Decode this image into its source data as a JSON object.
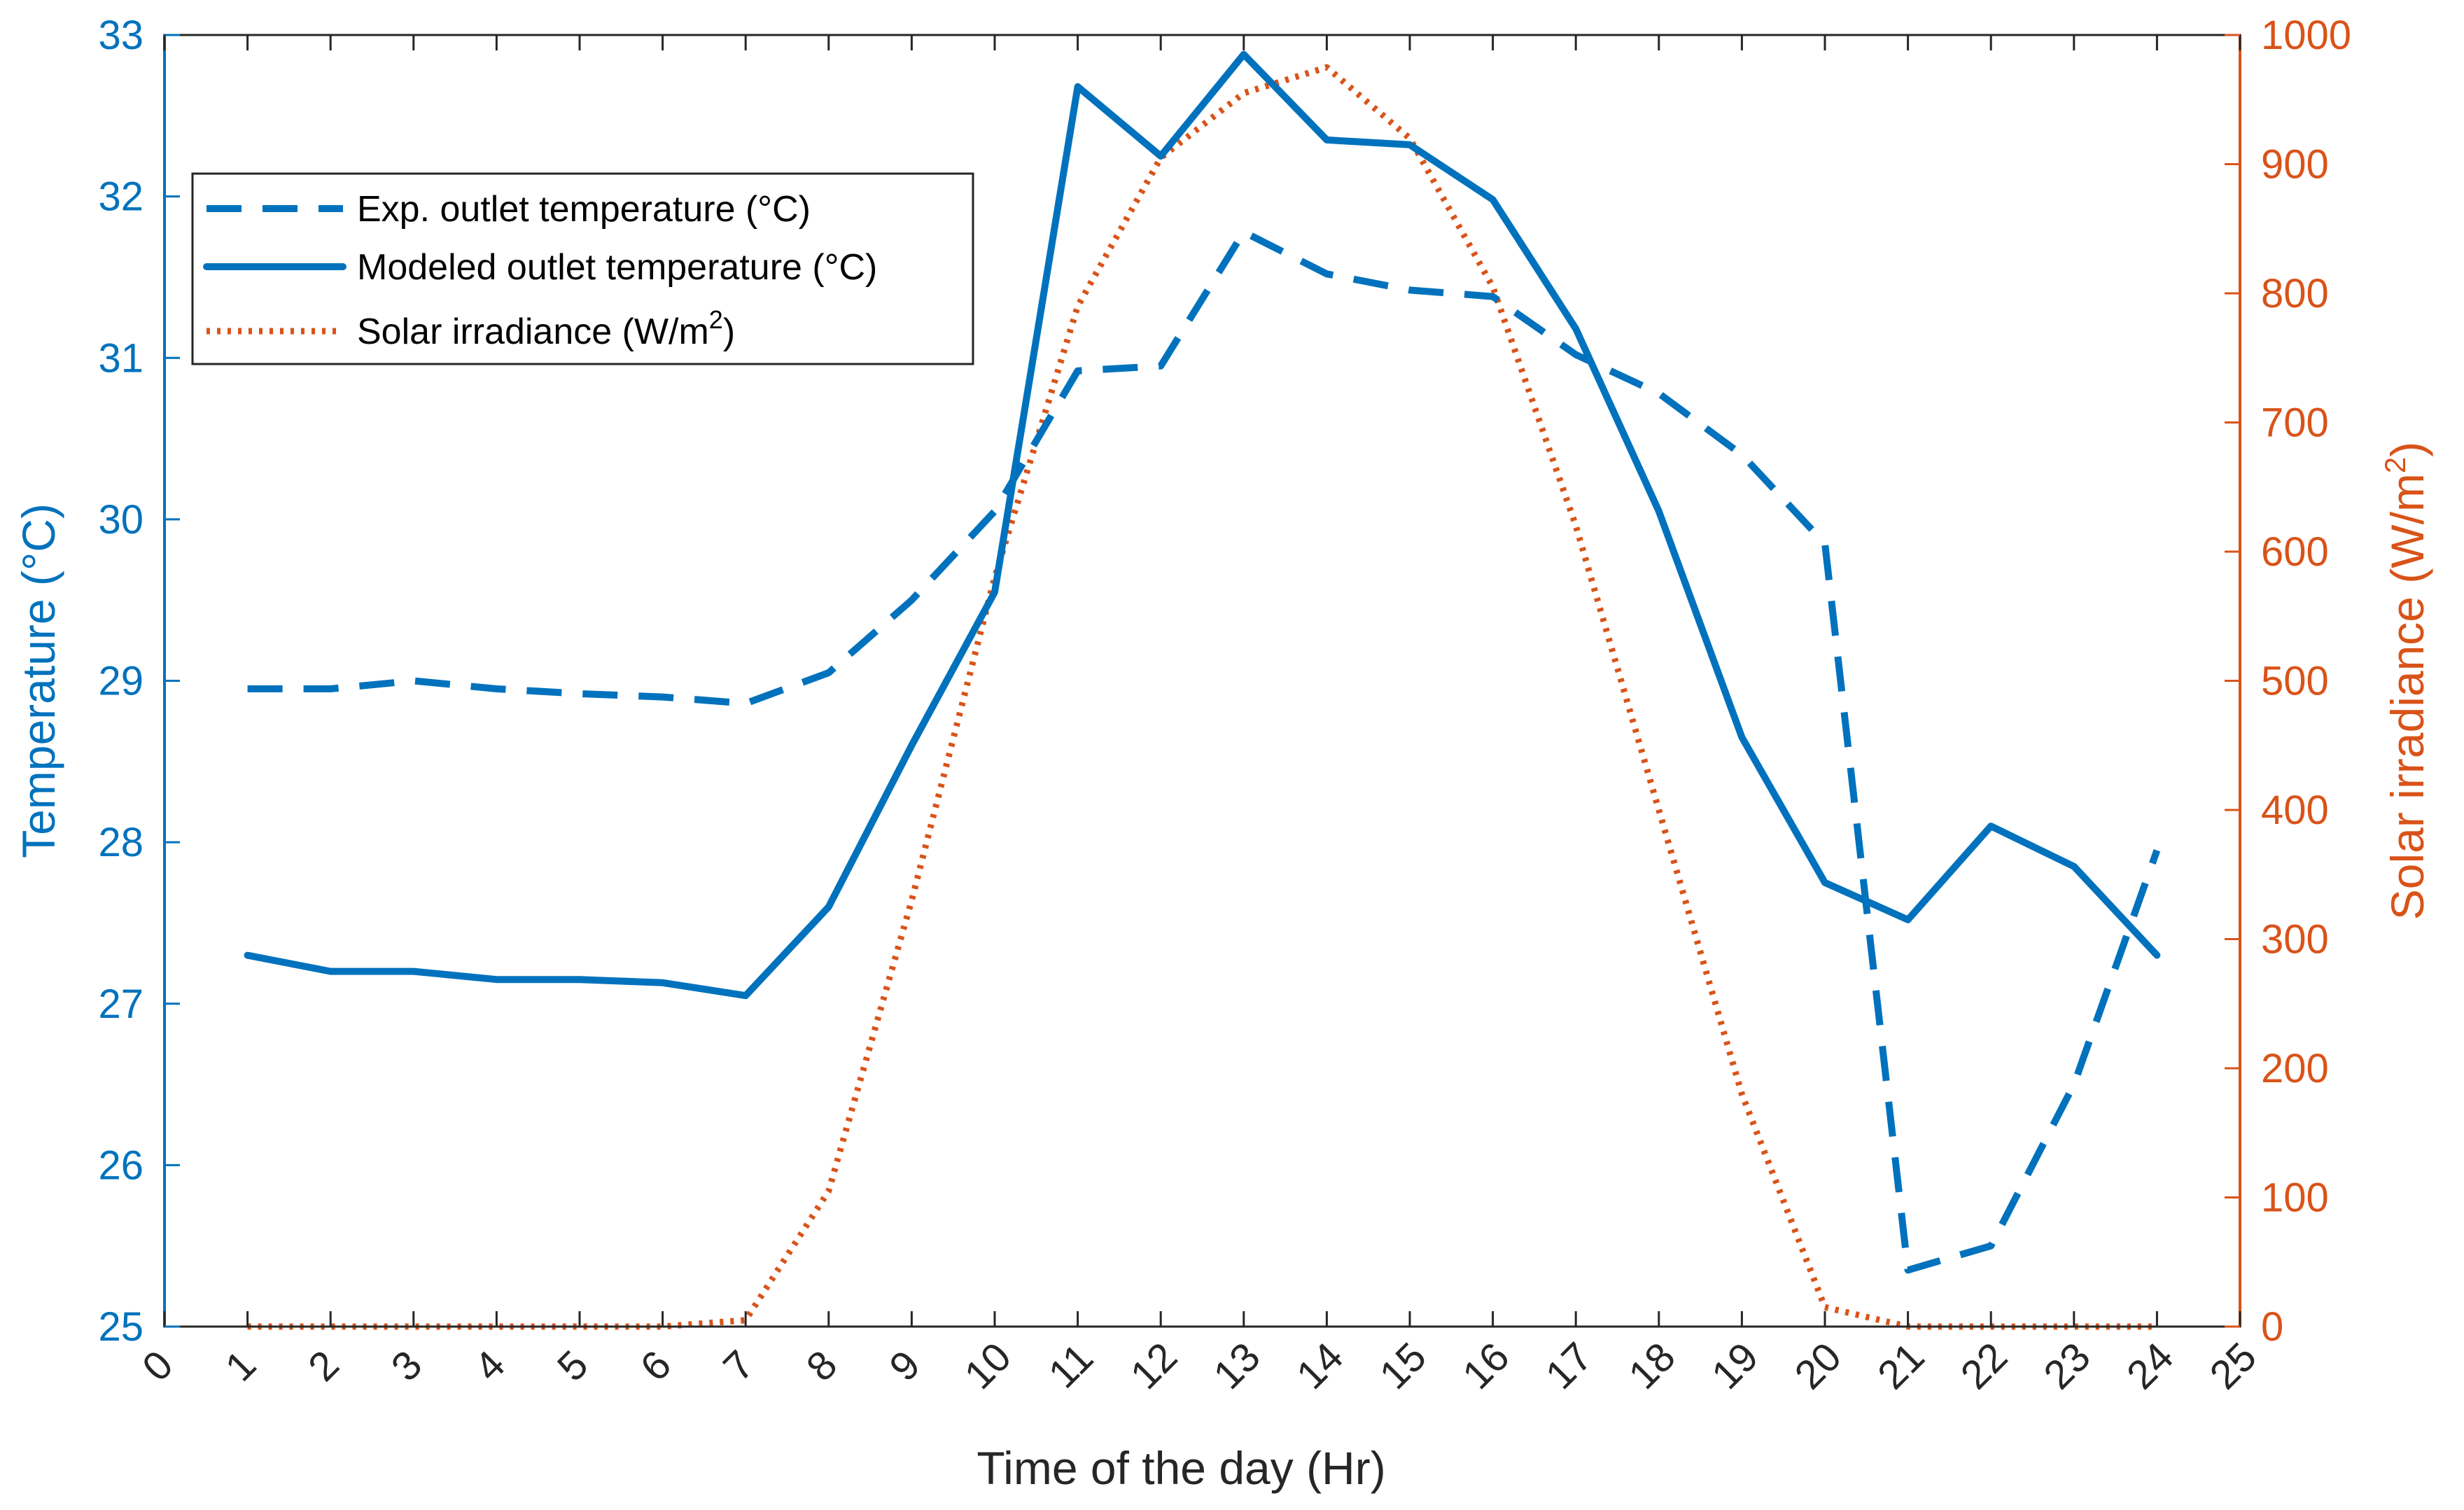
{
  "chart_data": {
    "type": "line",
    "title": "",
    "xlabel": "Time of the day (Hr)",
    "ylabel_left": "Temperature (°C)",
    "ylabel_right_base": "Solar irradiance (W/m",
    "ylabel_right_sup": "2",
    "ylabel_right_end": ")",
    "xlim": [
      0,
      25
    ],
    "ylim_left": [
      25,
      33
    ],
    "ylim_right": [
      0,
      1000
    ],
    "x_ticks": [
      0,
      1,
      2,
      3,
      4,
      5,
      6,
      7,
      8,
      9,
      10,
      11,
      12,
      13,
      14,
      15,
      16,
      17,
      18,
      19,
      20,
      21,
      22,
      23,
      24,
      25
    ],
    "y_left_ticks": [
      25,
      26,
      27,
      28,
      29,
      30,
      31,
      32,
      33
    ],
    "y_right_ticks": [
      0,
      100,
      200,
      300,
      400,
      500,
      600,
      700,
      800,
      900,
      1000
    ],
    "grid": false,
    "legend_position": "top-left",
    "colors": {
      "left_axis": "#0072BD",
      "right_axis": "#D95319",
      "axis_black": "#262626"
    },
    "x": [
      1,
      2,
      3,
      4,
      5,
      6,
      7,
      8,
      9,
      10,
      11,
      12,
      13,
      14,
      15,
      16,
      17,
      18,
      19,
      20,
      21,
      22,
      23,
      24
    ],
    "series": [
      {
        "name": "Exp. outlet temperature (°C)",
        "legend_label": "Exp. outlet temperature (°C)",
        "axis": "left",
        "style": "dashed",
        "color": "#0072BD",
        "values": [
          28.95,
          28.95,
          29.0,
          28.95,
          28.92,
          28.9,
          28.86,
          29.05,
          29.5,
          30.05,
          30.92,
          30.95,
          31.78,
          31.52,
          31.42,
          31.38,
          31.02,
          30.78,
          30.4,
          29.85,
          25.35,
          25.5,
          26.5,
          27.95
        ]
      },
      {
        "name": "Modeled outlet temperature (°C)",
        "legend_label": "Modeled outlet temperature (°C)",
        "axis": "left",
        "style": "solid",
        "color": "#0072BD",
        "values": [
          27.3,
          27.2,
          27.2,
          27.15,
          27.15,
          27.13,
          27.05,
          27.6,
          28.6,
          29.55,
          32.68,
          32.25,
          32.88,
          32.35,
          32.32,
          31.98,
          31.18,
          30.05,
          28.65,
          27.75,
          27.52,
          28.1,
          27.85,
          27.3
        ]
      },
      {
        "name": "Solar irradiance (W/m2)",
        "legend_label_base": "Solar irradiance (W/m",
        "legend_label_sup": "2",
        "legend_label_end": ")",
        "axis": "right",
        "style": "dotted",
        "color": "#D95319",
        "values": [
          0,
          0,
          0,
          0,
          0,
          0,
          5,
          105,
          330,
          580,
          790,
          905,
          955,
          975,
          920,
          805,
          620,
          400,
          180,
          15,
          0,
          0,
          0,
          0
        ]
      }
    ]
  }
}
